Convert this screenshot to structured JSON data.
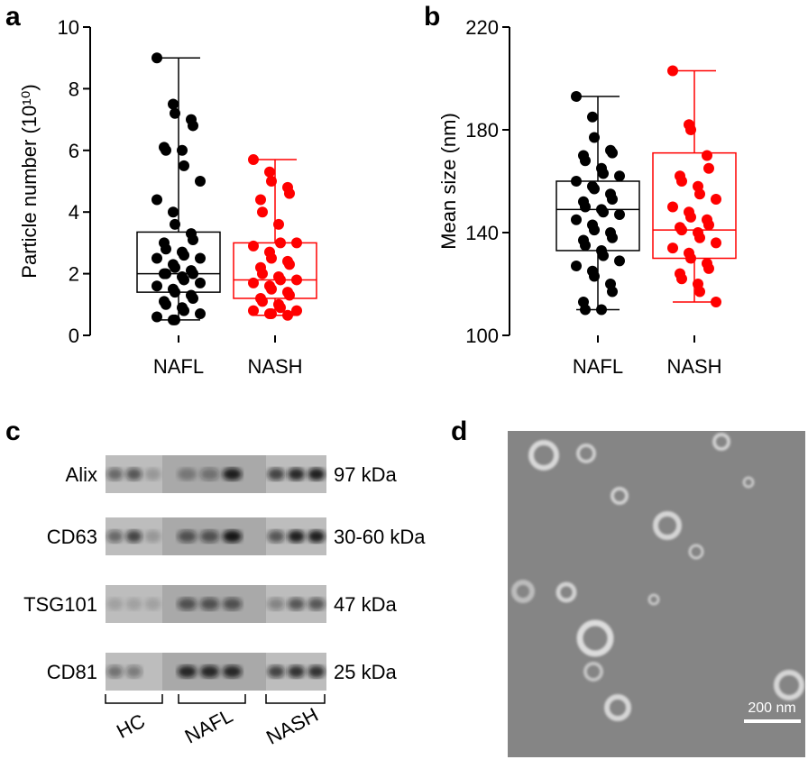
{
  "panel_labels": [
    "a",
    "b",
    "c",
    "d"
  ],
  "chart_data": [
    {
      "type": "box",
      "y_label": "Particle number (10¹⁰)",
      "categories": [
        "NAFL",
        "NASH"
      ],
      "ylim": [
        0,
        10
      ],
      "yticks": [
        0,
        2,
        4,
        6,
        8,
        10
      ],
      "boxes": [
        {
          "color": "#000000",
          "min": 0.5,
          "q1": 1.4,
          "median": 2.0,
          "q3": 3.35,
          "max": 9.0,
          "points": [
            9.0,
            7.5,
            7.2,
            7.0,
            6.8,
            6.1,
            6.0,
            6.0,
            5.5,
            5.0,
            4.4,
            4.0,
            3.6,
            3.3,
            3.1,
            3.0,
            2.8,
            2.7,
            2.6,
            2.5,
            2.5,
            2.3,
            2.2,
            2.1,
            2.0,
            2.0,
            2.0,
            1.9,
            1.8,
            1.7,
            1.6,
            1.5,
            1.4,
            1.3,
            1.2,
            1.1,
            1.0,
            0.9,
            0.8,
            0.7,
            0.6,
            0.5,
            0.5
          ]
        },
        {
          "color": "#ff0000",
          "min": 0.65,
          "q1": 1.2,
          "median": 1.8,
          "q3": 3.0,
          "max": 5.7,
          "points": [
            5.7,
            5.3,
            5.0,
            4.8,
            4.6,
            4.4,
            4.0,
            3.6,
            3.0,
            3.0,
            2.9,
            2.7,
            2.5,
            2.4,
            2.3,
            2.2,
            2.0,
            1.9,
            1.8,
            1.8,
            1.7,
            1.6,
            1.5,
            1.4,
            1.3,
            1.2,
            1.1,
            1.0,
            0.9,
            0.8,
            0.8,
            0.7,
            0.7,
            0.65
          ]
        }
      ]
    },
    {
      "type": "box",
      "y_label": "Mean size (nm)",
      "categories": [
        "NAFL",
        "NASH"
      ],
      "ylim": [
        100,
        220
      ],
      "yticks": [
        100,
        140,
        180,
        220
      ],
      "boxes": [
        {
          "color": "#000000",
          "min": 110,
          "q1": 133,
          "median": 149,
          "q3": 160,
          "max": 193,
          "points": [
            193,
            185,
            177,
            172,
            171,
            170,
            168,
            165,
            163,
            162,
            160,
            158,
            157,
            155,
            153,
            152,
            150,
            149,
            148,
            147,
            145,
            143,
            141,
            140,
            138,
            137,
            135,
            133,
            131,
            129,
            127,
            125,
            123,
            120,
            117,
            113,
            110,
            110
          ]
        },
        {
          "color": "#ff0000",
          "min": 113,
          "q1": 130,
          "median": 141,
          "q3": 171,
          "max": 203,
          "points": [
            203,
            182,
            180,
            170,
            165,
            162,
            160,
            158,
            155,
            153,
            150,
            148,
            146,
            145,
            143,
            142,
            141,
            140,
            138,
            136,
            134,
            132,
            130,
            128,
            126,
            124,
            122,
            120,
            117,
            113
          ]
        }
      ]
    }
  ],
  "blot": {
    "rows": [
      {
        "protein": "Alix",
        "size": "97 kDa"
      },
      {
        "protein": "CD63",
        "size": "30-60 kDa"
      },
      {
        "protein": "TSG101",
        "size": "47 kDa"
      },
      {
        "protein": "CD81",
        "size": "25 kDa"
      }
    ],
    "groups": [
      "HC",
      "NAFL",
      "NASH"
    ]
  },
  "tem": {
    "scale_bar": "200 nm"
  }
}
